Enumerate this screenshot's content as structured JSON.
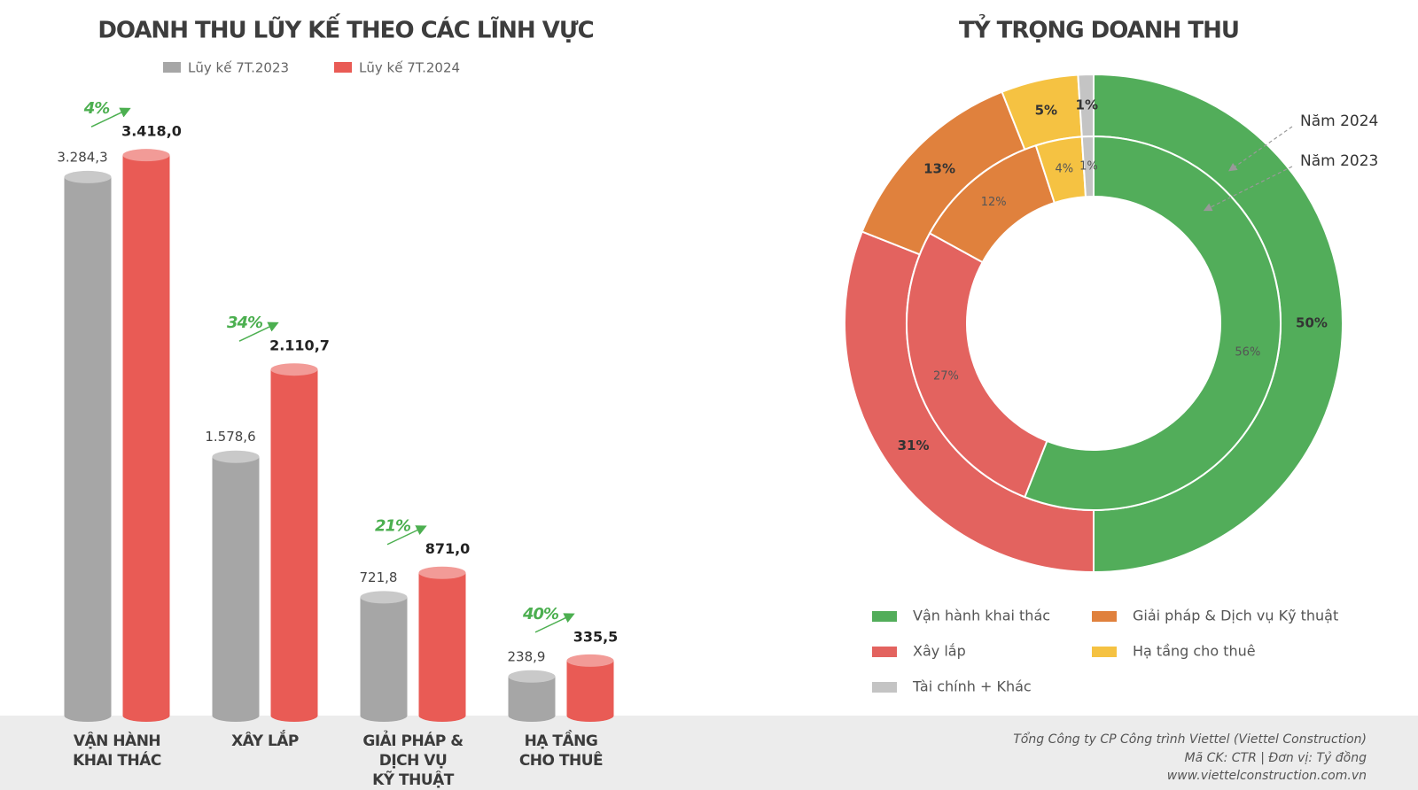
{
  "chart_data": [
    {
      "type": "cylinder-bar",
      "title": "DOANH THU LŨY KẾ THEO CÁC LĨNH VỰC",
      "categories": [
        "VẬN HÀNH\nKHAI THÁC",
        "XÂY LẮP",
        "GIẢI PHÁP &\nDỊCH VỤ\nKỸ THUẬT",
        "HẠ TẦNG\nCHO THUÊ"
      ],
      "series": [
        {
          "name": "Lũy kế 7T.2023",
          "color": "#a6a6a6",
          "values": [
            3284.3,
            1578.6,
            721.8,
            238.9
          ],
          "value_labels": [
            "3.284,3",
            "1.578,6",
            "721,8",
            "238,9"
          ]
        },
        {
          "name": "Lũy kế 7T.2024",
          "color": "#e95b55",
          "values": [
            3418.0,
            2110.7,
            871.0,
            335.5
          ],
          "value_labels": [
            "3.418,0",
            "2.110,7",
            "871,0",
            "335,5"
          ]
        }
      ],
      "growth_labels": [
        "4%",
        "34%",
        "21%",
        "40%"
      ],
      "ylim": [
        0,
        3500
      ]
    },
    {
      "type": "nested-donut",
      "title": "TỶ TRỌNG DOANH THU",
      "categories": [
        "Vận hành khai thác",
        "Xây lắp",
        "Giải pháp & Dịch vụ Kỹ thuật",
        "Hạ tầng cho thuê",
        "Tài chính + Khác"
      ],
      "colors": [
        "#52ad5a",
        "#e3635f",
        "#e0813d",
        "#f5c242",
        "#c4c4c4"
      ],
      "series": [
        {
          "name": "Năm 2024",
          "ring": "outer",
          "values": [
            50,
            31,
            13,
            5,
            1
          ],
          "value_labels": [
            "50%",
            "31%",
            "13%",
            "5%",
            "1%"
          ]
        },
        {
          "name": "Năm 2023",
          "ring": "inner",
          "values": [
            56,
            27,
            12,
            4,
            1
          ],
          "value_labels": [
            "56%",
            "27%",
            "12%",
            "4%",
            "1%"
          ]
        }
      ]
    }
  ],
  "footer": [
    "Tổng Công ty CP Công trình Viettel (Viettel Construction)",
    "Mã CK: CTR  |  Đơn vị: Tỷ đồng",
    "www.viettelconstruction.com.vn"
  ]
}
